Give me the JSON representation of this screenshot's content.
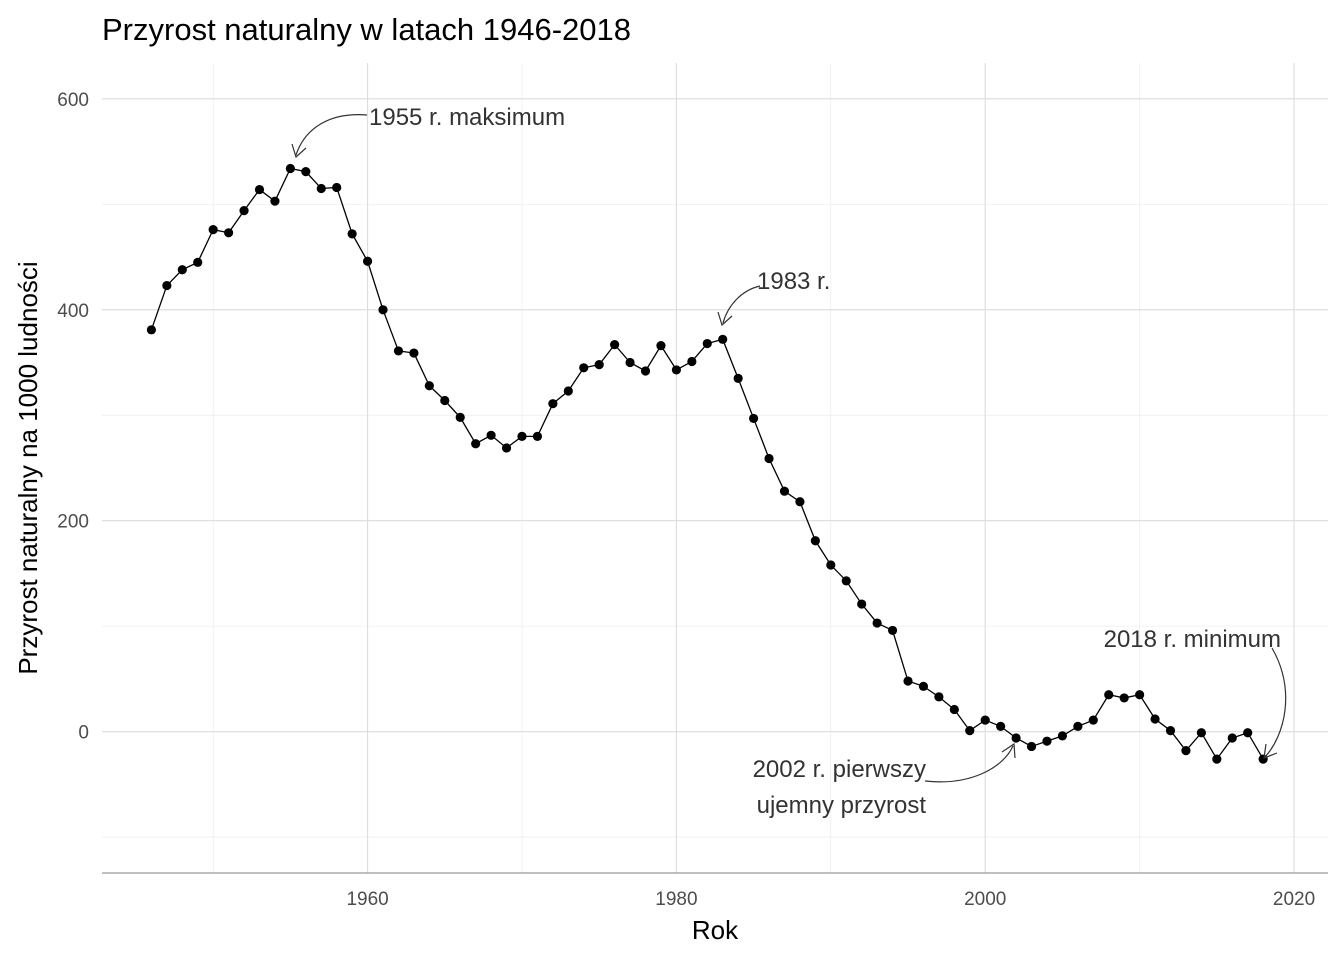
{
  "chart_data": {
    "type": "line",
    "title": "Przyrost naturalny w latach 1946-2018",
    "xlabel": "Rok",
    "ylabel": "Przyrost naturalny na 1000 ludności",
    "xlim": [
      1942.8,
      2022.2
    ],
    "ylim": [
      -134,
      634
    ],
    "x_ticks": [
      1960,
      1980,
      2000,
      2020
    ],
    "y_ticks": [
      0,
      200,
      400,
      600
    ],
    "grid": true,
    "markers": true,
    "series": [
      {
        "x": [
          1946,
          1947,
          1948,
          1949,
          1950,
          1951,
          1952,
          1953,
          1954,
          1955,
          1956,
          1957,
          1958,
          1959,
          1960,
          1961,
          1962,
          1963,
          1964,
          1965,
          1966,
          1967,
          1968,
          1969,
          1970,
          1971,
          1972,
          1973,
          1974,
          1975,
          1976,
          1977,
          1978,
          1979,
          1980,
          1981,
          1982,
          1983,
          1984,
          1985,
          1986,
          1987,
          1988,
          1989,
          1990,
          1991,
          1992,
          1993,
          1994,
          1995,
          1996,
          1997,
          1998,
          1999,
          2000,
          2001,
          2002,
          2003,
          2004,
          2005,
          2006,
          2007,
          2008,
          2009,
          2010,
          2011,
          2012,
          2013,
          2014,
          2015,
          2016,
          2017,
          2018
        ],
        "values": [
          381,
          423,
          438,
          445,
          476,
          473,
          494,
          514,
          503,
          534,
          531,
          515,
          516,
          472,
          446,
          400,
          361,
          359,
          328,
          314,
          298,
          273,
          281,
          269,
          280,
          280,
          311,
          323,
          345,
          348,
          367,
          350,
          342,
          366,
          343,
          351,
          368,
          372,
          335,
          297,
          259,
          228,
          218,
          181,
          158,
          143,
          121,
          103,
          96,
          48,
          43,
          33,
          21,
          1,
          11,
          5,
          -6,
          -14,
          -9,
          -4,
          5,
          11,
          35,
          32,
          35,
          12,
          1,
          -18,
          -1,
          -26,
          -6,
          -1,
          -26
        ]
      }
    ],
    "annotations": [
      {
        "text": "1955 r. maksimum",
        "x": 1955,
        "y": 534
      },
      {
        "text": "1983 r.",
        "x": 1983,
        "y": 372
      },
      {
        "text": "2002 r. pierwszy",
        "x": 2002,
        "y": -6
      },
      {
        "text": "ujemny przyrost",
        "x": 2002,
        "y": -6
      },
      {
        "text": "2018 r. minimum",
        "x": 2018,
        "y": -26
      }
    ]
  }
}
